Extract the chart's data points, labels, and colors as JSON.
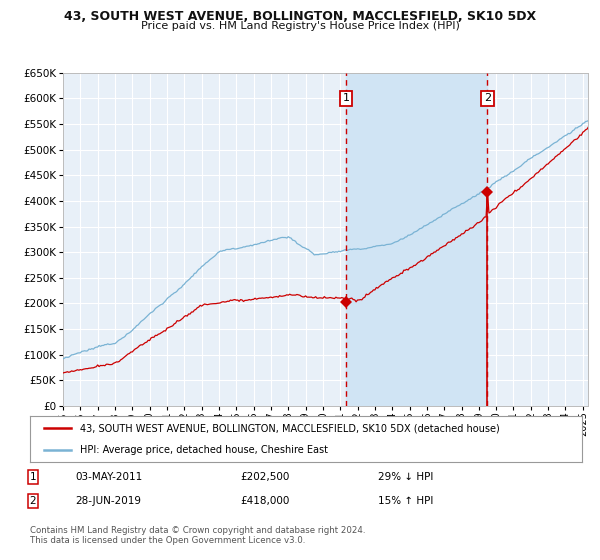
{
  "title1": "43, SOUTH WEST AVENUE, BOLLINGTON, MACCLESFIELD, SK10 5DX",
  "title2": "Price paid vs. HM Land Registry's House Price Index (HPI)",
  "legend_line1": "43, SOUTH WEST AVENUE, BOLLINGTON, MACCLESFIELD, SK10 5DX (detached house)",
  "legend_line2": "HPI: Average price, detached house, Cheshire East",
  "footnote1": "Contains HM Land Registry data © Crown copyright and database right 2024.",
  "footnote2": "This data is licensed under the Open Government Licence v3.0.",
  "transaction1": {
    "label": "1",
    "date": "03-MAY-2011",
    "price": "202,500",
    "hpi_rel": "29% ↓ HPI"
  },
  "transaction2": {
    "label": "2",
    "date": "28-JUN-2019",
    "price": "418,000",
    "hpi_rel": "15% ↑ HPI"
  },
  "year_start": 1995,
  "year_end": 2025,
  "ylim_min": 0,
  "ylim_max": 650000,
  "yticks": [
    0,
    50000,
    100000,
    150000,
    200000,
    250000,
    300000,
    350000,
    400000,
    450000,
    500000,
    550000,
    600000,
    650000
  ],
  "transaction1_x": 2011.33,
  "transaction2_x": 2019.49,
  "transaction1_price": 202500,
  "transaction2_price": 418000,
  "background_color": "#ffffff",
  "plot_bg_color": "#e8f0f8",
  "grid_color": "#ffffff",
  "hpi_color": "#7ab3d4",
  "price_color": "#cc0000",
  "shaded_region_color": "#d0e4f4",
  "dashed_line_color": "#cc0000"
}
